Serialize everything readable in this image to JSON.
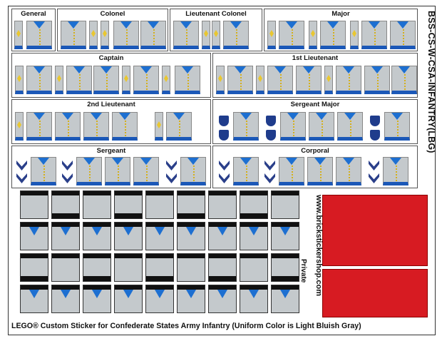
{
  "sheet": {
    "title": "BSS-CS-W-CSA-INFANTRY(LBG)",
    "website": "www.brickstickershop.com",
    "private_label": "Private",
    "caption": "LEGO® Custom Sticker for Confederate States Army Infantry (Uniform Color is Light Bluish Gray)"
  },
  "panels": {
    "general": "General",
    "colonel": "Colonel",
    "lt_colonel": "Lieutenant Colonel",
    "major": "Major",
    "captain": "Captain",
    "first_lt": "1st Lieutenant",
    "second_lt": "2nd Lieutenant",
    "sgt_major": "Sergeant Major",
    "sergeant": "Sergeant",
    "corporal": "Corporal"
  },
  "colors": {
    "uniform": "#c4c9cc",
    "facing_blue": "#1d6fd1",
    "belt_blue": "#1b58b8",
    "button_gold": "#d4b01c",
    "rank_navy": "#2a3f8a",
    "blank_red": "#d71b22"
  },
  "icons": [
    "torso-sticker",
    "arm-sticker",
    "chevron-icon",
    "shield-icon"
  ]
}
